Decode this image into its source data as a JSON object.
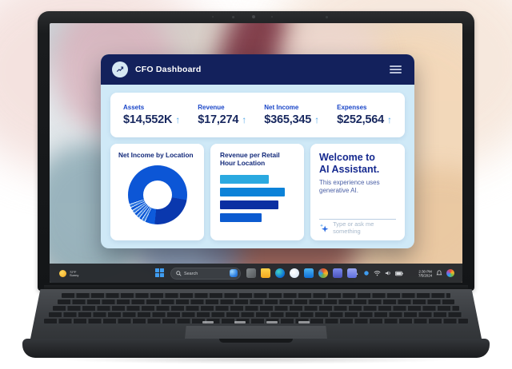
{
  "app": {
    "title": "CFO Dashboard",
    "logo_icon": "line-chart-icon",
    "menu_icon": "hamburger-icon",
    "kpis": [
      {
        "label": "Assets",
        "value": "$14,552K",
        "trend": "up"
      },
      {
        "label": "Revenue",
        "value": "$17,274",
        "trend": "up"
      },
      {
        "label": "Net Income",
        "value": "$365,345",
        "trend": "up"
      },
      {
        "label": "Expenses",
        "value": "$252,564",
        "trend": "up"
      }
    ],
    "assistant": {
      "title_line1": "Welcome to",
      "title_line2": "AI Assistant.",
      "body": "This experience uses generative AI.",
      "input_placeholder": "Type or ask me something",
      "sparkle_icon": "ai-sparkle-icon"
    },
    "colors": {
      "header_navy": "#13215c",
      "body_light_blue": "#cfe9f7",
      "kpi_label_blue": "#1a46c8",
      "kpi_value_navy": "#18285f",
      "trend_arrow_blue": "#56a9e8"
    }
  },
  "chart_data": [
    {
      "type": "pie",
      "title": "Net Income by Location",
      "donut": true,
      "legend_position": "none",
      "segments": [
        {
          "value": 27.8,
          "color": "#0c56d6"
        },
        {
          "value": 23.8,
          "color": "#0a38ae"
        },
        {
          "value": 4.0,
          "color": "#0d5bdc"
        },
        {
          "value": 1.3,
          "color": "#0c56d6"
        },
        {
          "value": 0.5,
          "color": "#ddeefc"
        },
        {
          "value": 1.3,
          "color": "#2f77e0"
        },
        {
          "value": 0.5,
          "color": "#ddeefc"
        },
        {
          "value": 1.3,
          "color": "#0c56d6"
        },
        {
          "value": 0.5,
          "color": "#ddeefc"
        },
        {
          "value": 1.3,
          "color": "#2f77e0"
        },
        {
          "value": 0.5,
          "color": "#ddeefc"
        },
        {
          "value": 1.3,
          "color": "#0c56d6"
        },
        {
          "value": 0.5,
          "color": "#ddeefc"
        },
        {
          "value": 1.3,
          "color": "#2f77e0"
        },
        {
          "value": 0.5,
          "color": "#ddeefc"
        },
        {
          "value": 1.3,
          "color": "#0c56d6"
        },
        {
          "value": 0.5,
          "color": "#ddeefc"
        },
        {
          "value": 1.3,
          "color": "#2f77e0"
        },
        {
          "value": 0.5,
          "color": "#ddeefc"
        },
        {
          "value": 30.0,
          "color": "#0c56d6"
        }
      ]
    },
    {
      "type": "bar",
      "title": "Revenue per Retail Hour Location",
      "orientation": "horizontal",
      "axis_labels_visible": false,
      "values": [
        66,
        87,
        78,
        56
      ],
      "colors": [
        "#2aa9e0",
        "#0c82d8",
        "#0a2fa2",
        "#0c5bd0"
      ]
    }
  ],
  "taskbar": {
    "weather": {
      "icon": "sun-icon",
      "temp": "72°F",
      "condition": "Sunny"
    },
    "start_icon": "windows-start-icon",
    "search_placeholder": "Search",
    "search_end_icon": "search-highlights-icon",
    "apps": [
      {
        "name": "task-view",
        "shape": "square",
        "bg": "linear-gradient(135deg,#84898c,#55595c)"
      },
      {
        "name": "file-explorer",
        "shape": "folder",
        "bg": "linear-gradient(180deg,#ffd24a,#f2a81f)"
      },
      {
        "name": "edge",
        "shape": "circle",
        "bg": "radial-gradient(circle at 35% 35%,#45d6c2,#0a6ad4 72%)"
      },
      {
        "name": "copilot",
        "shape": "circle",
        "bg": "radial-gradient(circle at 40% 40%,#ffffff,#cfe0f0)"
      },
      {
        "name": "store",
        "shape": "square",
        "bg": "linear-gradient(180deg,#4ab4f2,#0f6fd6)"
      },
      {
        "name": "photos",
        "shape": "circle",
        "bg": "conic-gradient(#e4572e,#f7b32b,#76b041,#2a9df4,#e4572e)"
      },
      {
        "name": "teams",
        "shape": "square",
        "bg": "linear-gradient(180deg,#7b8aed,#4b53bc)"
      },
      {
        "name": "settings",
        "shape": "square",
        "bg": "linear-gradient(180deg,#9aa6f0,#5f6fe0)"
      }
    ],
    "tray": {
      "chevron_icon": "chevron-up-icon",
      "icons": [
        "onedrive-icon",
        "wifi-icon",
        "speaker-icon",
        "battery-icon"
      ],
      "time": "2:30 PM",
      "date": "7/5/2024",
      "bell_icon": "notification-bell-icon",
      "spotlight_icon": "color-wheel-icon"
    }
  }
}
